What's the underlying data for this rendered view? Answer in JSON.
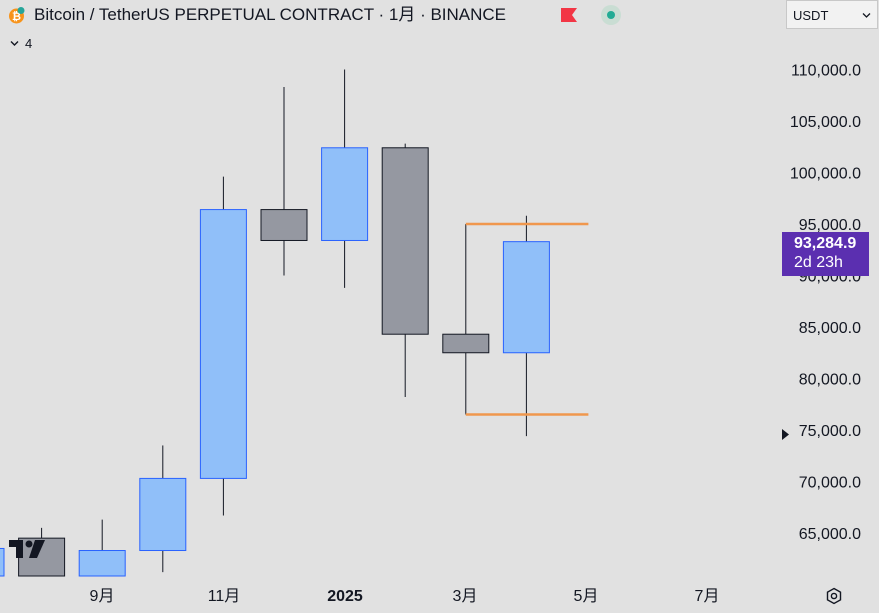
{
  "header": {
    "title": "Bitcoin / TetherUS PERPETUAL CONTRACT · 1月 · BINANCE",
    "indicator_count": "4",
    "currency": "USDT"
  },
  "price_scale": {
    "labels": [
      "110,000.0",
      "105,000.0",
      "100,000.0",
      "95,000.0",
      "90,000.0",
      "85,000.0",
      "80,000.0",
      "75,000.0",
      "70,000.0",
      "65,000.0"
    ],
    "current_price": "93,284.9",
    "countdown": "2d 23h"
  },
  "time_axis": {
    "labels": [
      "9月",
      "11月",
      "2025",
      "3月",
      "5月",
      "7月"
    ]
  },
  "colors": {
    "up": "#90bff9",
    "up_border": "#2962ff",
    "down": "#9598a1",
    "down_border": "#131722",
    "range_line": "#f0974d",
    "price_tag": "#5b2fb0"
  },
  "chart_data": {
    "type": "candlestick",
    "interval": "1月",
    "candles": [
      {
        "open": 59000,
        "high": 65000,
        "low": 57000,
        "close": 63500
      },
      {
        "open": 64500,
        "high": 65500,
        "low": 57500,
        "close": 58500
      },
      {
        "open": 58500,
        "high": 66300,
        "low": 55000,
        "close": 63300
      },
      {
        "open": 63300,
        "high": 73500,
        "low": 61200,
        "close": 70300
      },
      {
        "open": 70300,
        "high": 99600,
        "low": 66700,
        "close": 96400
      },
      {
        "open": 96400,
        "high": 108300,
        "low": 90000,
        "close": 93400
      },
      {
        "open": 93400,
        "high": 110000,
        "low": 88800,
        "close": 102400
      },
      {
        "open": 102400,
        "high": 102800,
        "low": 78200,
        "close": 84300
      },
      {
        "open": 84300,
        "high": 95000,
        "low": 76500,
        "close": 82500
      },
      {
        "open": 82500,
        "high": 95800,
        "low": 74400,
        "close": 93285
      }
    ],
    "horizontal_lines": [
      95000,
      76500
    ],
    "ylim": [
      60500,
      112500
    ]
  }
}
